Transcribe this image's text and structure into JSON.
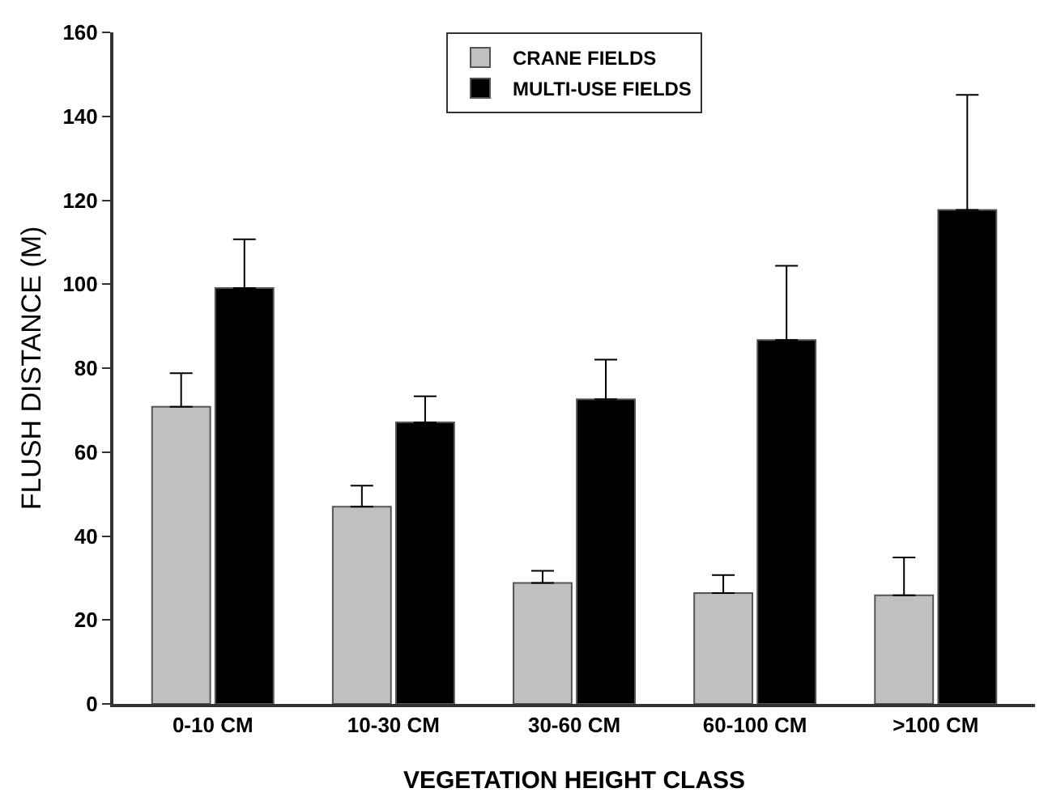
{
  "chart_data": {
    "type": "bar",
    "xlabel": "VEGETATION HEIGHT CLASS",
    "ylabel": "FLUSH DISTANCE (M)",
    "categories": [
      "0-10 CM",
      "10-30 CM",
      "30-60 CM",
      "60-100 CM",
      ">100 CM"
    ],
    "series": [
      {
        "name": "CRANE FIELDS",
        "color": "#c0c0c0",
        "values": [
          70.8,
          47,
          28.8,
          26.4,
          25.9
        ],
        "errors": [
          [
            70.8,
            78.8
          ],
          [
            47,
            52
          ],
          [
            28.8,
            31.7
          ],
          [
            26.4,
            30.7
          ],
          [
            25.9,
            34.9
          ]
        ]
      },
      {
        "name": "MULTI-USE FIELDS",
        "color": "#000000",
        "values": [
          99.1,
          67.1,
          72.6,
          86.7,
          117.7
        ],
        "errors": [
          [
            99.1,
            110.7
          ],
          [
            67.1,
            73.3
          ],
          [
            72.6,
            82
          ],
          [
            86.7,
            104.4
          ],
          [
            117.7,
            145.1
          ]
        ]
      }
    ],
    "ylim": [
      0,
      160
    ],
    "yticks": [
      0,
      20,
      40,
      60,
      80,
      100,
      120,
      140,
      160
    ],
    "grid": false,
    "legend": "top"
  }
}
